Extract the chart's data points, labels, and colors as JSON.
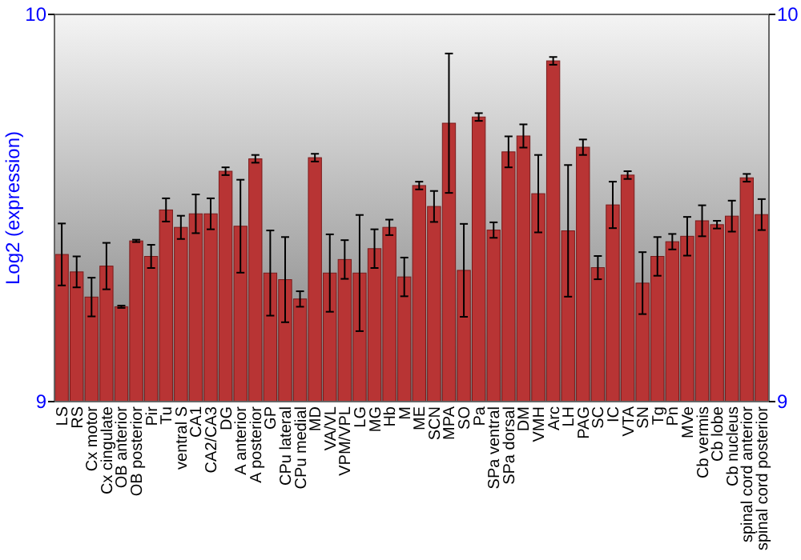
{
  "chart_data": {
    "type": "bar",
    "ylabel": "Log2 (expression)",
    "categories": [
      "LS",
      "RS",
      "Cx motor",
      "Cx cingulate",
      "OB anterior",
      "OB posterior",
      "Pir",
      "Tu",
      "ventral S",
      "CA1",
      "CA2/CA3",
      "DG",
      "A anterior",
      "A posterior",
      "GP",
      "CPu lateral",
      "CPu medial",
      "MD",
      "VA/VL",
      "VPM/VPL",
      "LG",
      "MG",
      "Hb",
      "M",
      "ME",
      "SCN",
      "MPA",
      "SO",
      "Pa",
      "SPa ventral",
      "SPa dorsal",
      "DM",
      "VMH",
      "Arc",
      "LH",
      "PAG",
      "SC",
      "IC",
      "VTA",
      "SN",
      "Tg",
      "Pn",
      "MVe",
      "Cb vermis",
      "Cb lobe",
      "Cb nucleus",
      "spinal cord anterior",
      "spinal cord posterior"
    ],
    "series": [
      {
        "color": "#b83434",
        "values": [
          9.38,
          9.335,
          9.27,
          9.35,
          9.245,
          9.415,
          9.375,
          9.495,
          9.45,
          9.485,
          9.485,
          9.595,
          9.453,
          9.627,
          9.332,
          9.315,
          9.265,
          9.63,
          9.332,
          9.367,
          9.332,
          9.395,
          9.45,
          9.322,
          9.558,
          9.504,
          9.719,
          9.339,
          9.735,
          9.443,
          9.645,
          9.686,
          9.537,
          9.88,
          9.441,
          9.657,
          9.346,
          9.508,
          9.585,
          9.306,
          9.375,
          9.413,
          9.427,
          9.467,
          9.457,
          9.479,
          9.578,
          9.483
        ],
        "errors": [
          0.08,
          0.04,
          0.05,
          0.06,
          0.003,
          0.003,
          0.03,
          0.03,
          0.03,
          0.05,
          0.04,
          0.01,
          0.12,
          0.01,
          0.11,
          0.11,
          0.02,
          0.01,
          0.1,
          0.05,
          0.15,
          0.05,
          0.02,
          0.05,
          0.01,
          0.04,
          0.18,
          0.12,
          0.01,
          0.02,
          0.04,
          0.03,
          0.1,
          0.01,
          0.17,
          0.02,
          0.03,
          0.06,
          0.01,
          0.08,
          0.05,
          0.02,
          0.05,
          0.04,
          0.01,
          0.04,
          0.01,
          0.04
        ]
      }
    ],
    "ylim": [
      9,
      10
    ],
    "yticks": [
      9,
      10
    ],
    "y2lim": [
      9,
      10
    ],
    "y2ticks": [
      9,
      10
    ]
  }
}
